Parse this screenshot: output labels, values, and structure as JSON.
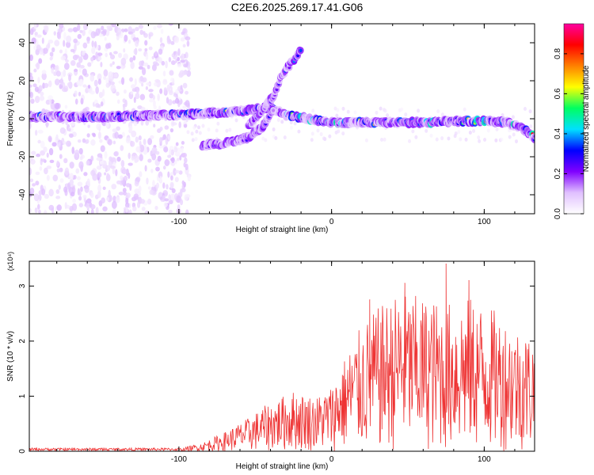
{
  "title": "C2E6.2025.269.17.41.G06",
  "chart_data": [
    {
      "type": "heatmap",
      "xlabel": "Height of straight line (km)",
      "ylabel": "Frequency (Hz)",
      "xlim": [
        -198,
        133
      ],
      "ylim": [
        -50,
        50
      ],
      "xticks": [
        -100,
        0,
        100
      ],
      "yticks": [
        -40,
        -20,
        0,
        20,
        40
      ],
      "colorbar": {
        "label": "Normalized spectral amplitude",
        "range": [
          0,
          0.95
        ],
        "ticks": [
          0.0,
          0.2,
          0.4,
          0.6,
          0.8
        ],
        "tick_labels": [
          "0.0",
          "0.2",
          "0.4",
          "0.6",
          "0.8"
        ],
        "colors": [
          "#ffffff",
          "#e0c0ff",
          "#8000ff",
          "#0000ff",
          "#00e0ff",
          "#00ff60",
          "#ffff00",
          "#ff8000",
          "#ff0000",
          "#ff00a0"
        ]
      },
      "traces": [
        {
          "name": "main carrier",
          "x": [
            -198,
            -150,
            -100,
            -60,
            -40,
            -30,
            0,
            50,
            100,
            115,
            125,
            133
          ],
          "y": [
            1,
            1,
            2,
            4,
            6,
            2,
            -2,
            -2,
            -1,
            -2,
            -5,
            -10
          ]
        },
        {
          "name": "lower branch",
          "x": [
            -85,
            -70,
            -55,
            -45,
            -38
          ],
          "y": [
            -14,
            -13,
            -10,
            -4,
            5
          ]
        },
        {
          "name": "upper branch",
          "x": [
            -55,
            -45,
            -38,
            -33,
            -26,
            -20
          ],
          "y": [
            -4,
            5,
            12,
            22,
            30,
            36
          ]
        }
      ]
    },
    {
      "type": "line",
      "xlabel": "Height of straight line (km)",
      "ylabel": "SNR (10 * v/v)",
      "y_scale_label": "(x10⁴)",
      "xlim": [
        -198,
        133
      ],
      "ylim": [
        0,
        3.45
      ],
      "xticks": [
        -100,
        0,
        100
      ],
      "yticks": [
        0,
        1,
        2,
        3
      ],
      "color": "#ee3333",
      "envelope": {
        "x": [
          -198,
          -100,
          -85,
          -70,
          -55,
          -40,
          -25,
          -10,
          0,
          10,
          20,
          30,
          45,
          60,
          75,
          90,
          105,
          120,
          133
        ],
        "y": [
          0.04,
          0.05,
          0.15,
          0.35,
          0.6,
          0.9,
          1.1,
          1.0,
          1.2,
          1.8,
          2.3,
          2.6,
          2.9,
          2.8,
          2.7,
          2.8,
          2.6,
          2.3,
          2.1
        ]
      },
      "peaks": [
        {
          "x": 75,
          "y": 3.4
        },
        {
          "x": 48,
          "y": 3.05
        },
        {
          "x": 90,
          "y": 3.1
        },
        {
          "x": 25,
          "y": 2.75
        }
      ]
    }
  ]
}
